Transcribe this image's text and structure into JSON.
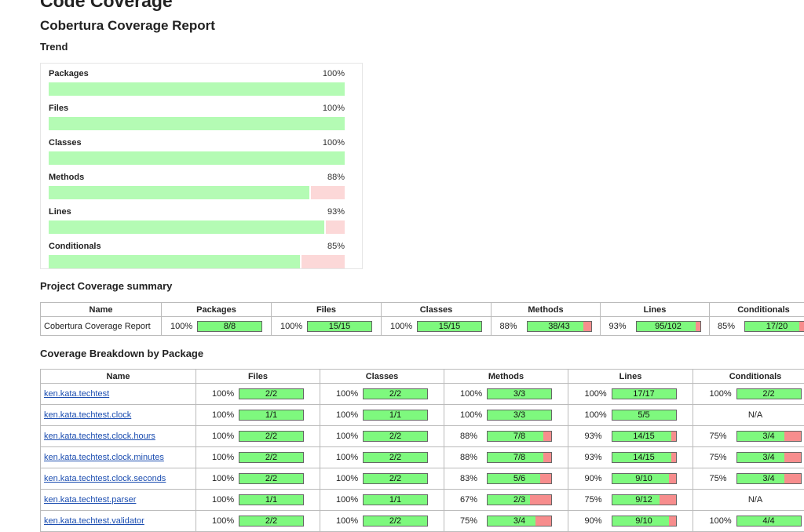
{
  "title": "Code Coverage",
  "report_title": "Cobertura Coverage Report",
  "trend": {
    "title": "Trend",
    "items": [
      {
        "label": "Packages",
        "pct": "100%",
        "value": 1.0
      },
      {
        "label": "Files",
        "pct": "100%",
        "value": 1.0
      },
      {
        "label": "Classes",
        "pct": "100%",
        "value": 1.0
      },
      {
        "label": "Methods",
        "pct": "88%",
        "value": 0.88
      },
      {
        "label": "Lines",
        "pct": "93%",
        "value": 0.93
      },
      {
        "label": "Conditionals",
        "pct": "85%",
        "value": 0.85
      }
    ]
  },
  "summary": {
    "title": "Project Coverage summary",
    "headers": [
      "Name",
      "Packages",
      "Files",
      "Classes",
      "Methods",
      "Lines",
      "Conditionals"
    ],
    "rows": [
      {
        "name": "Cobertura Coverage Report",
        "cells": [
          {
            "pct": "100%",
            "ratio": "8/8",
            "value": 1.0
          },
          {
            "pct": "100%",
            "ratio": "15/15",
            "value": 1.0
          },
          {
            "pct": "100%",
            "ratio": "15/15",
            "value": 1.0
          },
          {
            "pct": "88%",
            "ratio": "38/43",
            "value": 0.88
          },
          {
            "pct": "93%",
            "ratio": "95/102",
            "value": 0.93
          },
          {
            "pct": "85%",
            "ratio": "17/20",
            "value": 0.85
          }
        ]
      }
    ]
  },
  "breakdown": {
    "title": "Coverage Breakdown by Package",
    "headers": [
      "Name",
      "Files",
      "Classes",
      "Methods",
      "Lines",
      "Conditionals"
    ],
    "rows": [
      {
        "name": "ken.kata.techtest",
        "cells": [
          {
            "pct": "100%",
            "ratio": "2/2",
            "value": 1.0
          },
          {
            "pct": "100%",
            "ratio": "2/2",
            "value": 1.0
          },
          {
            "pct": "100%",
            "ratio": "3/3",
            "value": 1.0
          },
          {
            "pct": "100%",
            "ratio": "17/17",
            "value": 1.0
          },
          {
            "pct": "100%",
            "ratio": "2/2",
            "value": 1.0
          }
        ]
      },
      {
        "name": "ken.kata.techtest.clock",
        "cells": [
          {
            "pct": "100%",
            "ratio": "1/1",
            "value": 1.0
          },
          {
            "pct": "100%",
            "ratio": "1/1",
            "value": 1.0
          },
          {
            "pct": "100%",
            "ratio": "3/3",
            "value": 1.0
          },
          {
            "pct": "100%",
            "ratio": "5/5",
            "value": 1.0
          },
          {
            "na": "N/A"
          }
        ]
      },
      {
        "name": "ken.kata.techtest.clock.hours",
        "cells": [
          {
            "pct": "100%",
            "ratio": "2/2",
            "value": 1.0
          },
          {
            "pct": "100%",
            "ratio": "2/2",
            "value": 1.0
          },
          {
            "pct": "88%",
            "ratio": "7/8",
            "value": 0.875
          },
          {
            "pct": "93%",
            "ratio": "14/15",
            "value": 0.933
          },
          {
            "pct": "75%",
            "ratio": "3/4",
            "value": 0.75
          }
        ]
      },
      {
        "name": "ken.kata.techtest.clock.minutes",
        "cells": [
          {
            "pct": "100%",
            "ratio": "2/2",
            "value": 1.0
          },
          {
            "pct": "100%",
            "ratio": "2/2",
            "value": 1.0
          },
          {
            "pct": "88%",
            "ratio": "7/8",
            "value": 0.875
          },
          {
            "pct": "93%",
            "ratio": "14/15",
            "value": 0.933
          },
          {
            "pct": "75%",
            "ratio": "3/4",
            "value": 0.75
          }
        ]
      },
      {
        "name": "ken.kata.techtest.clock.seconds",
        "cells": [
          {
            "pct": "100%",
            "ratio": "2/2",
            "value": 1.0
          },
          {
            "pct": "100%",
            "ratio": "2/2",
            "value": 1.0
          },
          {
            "pct": "83%",
            "ratio": "5/6",
            "value": 0.833
          },
          {
            "pct": "90%",
            "ratio": "9/10",
            "value": 0.9
          },
          {
            "pct": "75%",
            "ratio": "3/4",
            "value": 0.75
          }
        ]
      },
      {
        "name": "ken.kata.techtest.parser",
        "cells": [
          {
            "pct": "100%",
            "ratio": "1/1",
            "value": 1.0
          },
          {
            "pct": "100%",
            "ratio": "1/1",
            "value": 1.0
          },
          {
            "pct": "67%",
            "ratio": "2/3",
            "value": 0.667
          },
          {
            "pct": "75%",
            "ratio": "9/12",
            "value": 0.75
          },
          {
            "na": "N/A"
          }
        ]
      },
      {
        "name": "ken.kata.techtest.validator",
        "cells": [
          {
            "pct": "100%",
            "ratio": "2/2",
            "value": 1.0
          },
          {
            "pct": "100%",
            "ratio": "2/2",
            "value": 1.0
          },
          {
            "pct": "75%",
            "ratio": "3/4",
            "value": 0.75
          },
          {
            "pct": "90%",
            "ratio": "9/10",
            "value": 0.9
          },
          {
            "pct": "100%",
            "ratio": "4/4",
            "value": 1.0
          }
        ]
      }
    ]
  },
  "colors": {
    "pass": "#7ef97e",
    "fail": "#f78d8d",
    "trend_pass": "#b4fbb4",
    "trend_fail": "#fcd8d8"
  }
}
